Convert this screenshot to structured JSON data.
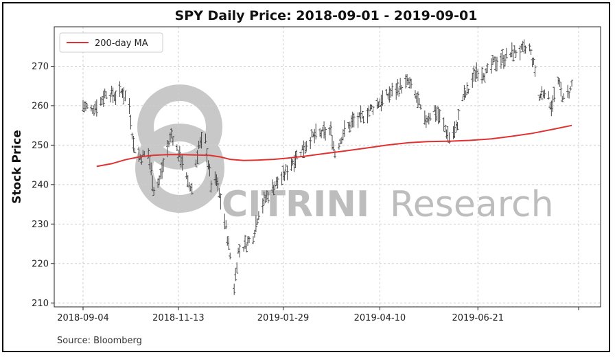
{
  "chart_data": {
    "type": "line",
    "title": "SPY Daily Price: 2018-09-01 - 2019-09-01",
    "xlabel": "",
    "ylabel": "Stock Price",
    "ylim": [
      209,
      280
    ],
    "y_ticks": [
      210,
      220,
      230,
      240,
      250,
      260,
      270
    ],
    "x_range": [
      "2018-09-04",
      "2019-09-03"
    ],
    "x_ticks": [
      "2018-09-04",
      "2018-11-13",
      "2019-01-29",
      "2019-04-10",
      "2019-06-21"
    ],
    "grid": true,
    "legend": {
      "position": "top-left",
      "entries": [
        "200-day MA"
      ]
    },
    "series": [
      {
        "name": "200-day MA",
        "color": "#e03131",
        "points": [
          [
            "2018-09-14",
            244.6
          ],
          [
            "2018-09-25",
            245.3
          ],
          [
            "2018-10-05",
            246.3
          ],
          [
            "2018-10-15",
            247.0
          ],
          [
            "2018-10-25",
            247.4
          ],
          [
            "2018-11-05",
            247.6
          ],
          [
            "2018-11-15",
            247.6
          ],
          [
            "2018-11-26",
            247.5
          ],
          [
            "2018-12-06",
            247.4
          ],
          [
            "2018-12-14",
            247.0
          ],
          [
            "2018-12-21",
            246.4
          ],
          [
            "2018-12-31",
            246.1
          ],
          [
            "2019-01-10",
            246.2
          ],
          [
            "2019-01-22",
            246.4
          ],
          [
            "2019-02-01",
            246.7
          ],
          [
            "2019-02-14",
            247.2
          ],
          [
            "2019-03-01",
            247.9
          ],
          [
            "2019-03-15",
            248.5
          ],
          [
            "2019-04-01",
            249.3
          ],
          [
            "2019-04-15",
            250.0
          ],
          [
            "2019-05-01",
            250.6
          ],
          [
            "2019-05-15",
            250.9
          ],
          [
            "2019-06-01",
            251.0
          ],
          [
            "2019-06-15",
            251.2
          ],
          [
            "2019-07-01",
            251.6
          ],
          [
            "2019-07-15",
            252.2
          ],
          [
            "2019-07-31",
            253.0
          ],
          [
            "2019-08-15",
            254.0
          ],
          [
            "2019-08-29",
            255.0
          ]
        ]
      },
      {
        "name": "",
        "style": "daily-high-low-bars",
        "color": "#444444",
        "points": [
          [
            "2018-09-04",
            260.0
          ],
          [
            "2018-09-10",
            259.0
          ],
          [
            "2018-09-17",
            261.0
          ],
          [
            "2018-09-21",
            263.5
          ],
          [
            "2018-09-28",
            262.5
          ],
          [
            "2018-10-03",
            263.8
          ],
          [
            "2018-10-08",
            260.0
          ],
          [
            "2018-10-11",
            250.0
          ],
          [
            "2018-10-16",
            247.0
          ],
          [
            "2018-10-22",
            248.0
          ],
          [
            "2018-10-26",
            239.0
          ],
          [
            "2018-10-30",
            241.0
          ],
          [
            "2018-11-02",
            245.0
          ],
          [
            "2018-11-08",
            253.0
          ],
          [
            "2018-11-13",
            248.0
          ],
          [
            "2018-11-16",
            246.0
          ],
          [
            "2018-11-20",
            240.0
          ],
          [
            "2018-11-23",
            239.0
          ],
          [
            "2018-11-28",
            250.0
          ],
          [
            "2018-12-03",
            251.0
          ],
          [
            "2018-12-07",
            240.0
          ],
          [
            "2018-12-11",
            241.0
          ],
          [
            "2018-12-14",
            236.0
          ],
          [
            "2018-12-18",
            229.0
          ],
          [
            "2018-12-21",
            222.0
          ],
          [
            "2018-12-24",
            214.0
          ],
          [
            "2018-12-27",
            223.0
          ],
          [
            "2019-01-02",
            225.0
          ],
          [
            "2019-01-07",
            227.0
          ],
          [
            "2019-01-11",
            233.0
          ],
          [
            "2019-01-17",
            237.0
          ],
          [
            "2019-01-23",
            240.0
          ],
          [
            "2019-01-29",
            242.0
          ],
          [
            "2019-02-05",
            246.0
          ],
          [
            "2019-02-12",
            249.0
          ],
          [
            "2019-02-19",
            252.0
          ],
          [
            "2019-02-26",
            253.0
          ],
          [
            "2019-03-05",
            253.5
          ],
          [
            "2019-03-08",
            248.0
          ],
          [
            "2019-03-14",
            253.0
          ],
          [
            "2019-03-21",
            256.0
          ],
          [
            "2019-03-28",
            257.0
          ],
          [
            "2019-04-03",
            259.0
          ],
          [
            "2019-04-10",
            261.0
          ],
          [
            "2019-04-17",
            263.0
          ],
          [
            "2019-04-24",
            264.5
          ],
          [
            "2019-05-01",
            266.0
          ],
          [
            "2019-05-07",
            262.0
          ],
          [
            "2019-05-13",
            256.0
          ],
          [
            "2019-05-20",
            259.0
          ],
          [
            "2019-05-24",
            257.0
          ],
          [
            "2019-05-31",
            252.0
          ],
          [
            "2019-06-05",
            254.0
          ],
          [
            "2019-06-10",
            262.0
          ],
          [
            "2019-06-14",
            264.0
          ],
          [
            "2019-06-20",
            269.0
          ],
          [
            "2019-06-27",
            268.0
          ],
          [
            "2019-07-03",
            271.0
          ],
          [
            "2019-07-10",
            272.0
          ],
          [
            "2019-07-17",
            273.5
          ],
          [
            "2019-07-24",
            274.0
          ],
          [
            "2019-07-29",
            274.5
          ],
          [
            "2019-08-02",
            269.0
          ],
          [
            "2019-08-05",
            262.0
          ],
          [
            "2019-08-09",
            264.0
          ],
          [
            "2019-08-14",
            260.0
          ],
          [
            "2019-08-19",
            266.0
          ],
          [
            "2019-08-23",
            261.5
          ],
          [
            "2019-08-28",
            264.0
          ],
          [
            "2019-08-30",
            267.0
          ]
        ]
      }
    ],
    "source": "Source: Bloomberg",
    "watermark": {
      "word_bold": "CITRINI",
      "word_light": "Research"
    }
  },
  "colors": {
    "ma_line": "#e03131",
    "price_bars": "#444444",
    "watermark": "#bdbdbd",
    "grid": "#cfcfcf"
  }
}
